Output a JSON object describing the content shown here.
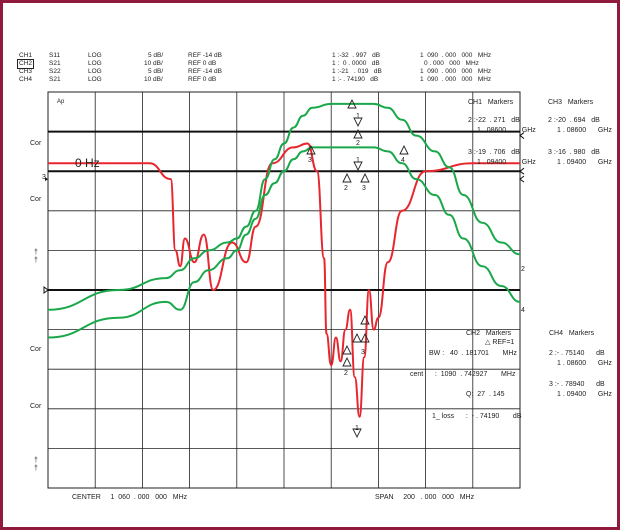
{
  "header": {
    "rows": [
      {
        "ch": "CH1",
        "param": "S11",
        "fmt": "LOG",
        "scale": "5 dB/",
        "ref": "REF -14 dB",
        "mk": "1 :-32  . 997   dB",
        "freq": "1  090  . 000   000   MHz"
      },
      {
        "ch": "CH2",
        "param": "S21",
        "fmt": "LOG",
        "scale": "10 dB/",
        "ref": "REF 0 dB",
        "mk": "1 :  0 . 0000   dB",
        "freq": "0 . 000   000   MHz"
      },
      {
        "ch": "CH3",
        "param": "S22",
        "fmt": "LOG",
        "scale": "5 dB/",
        "ref": "REF -14 dB",
        "mk": "1 :-21   . 019   dB",
        "freq": "1  090  . 000   000   MHz"
      },
      {
        "ch": "CH4",
        "param": "S21",
        "fmt": "LOG",
        "scale": "10 dB/",
        "ref": "REF 0 dB",
        "mk": "1 :- . 74190   dB",
        "freq": "1  090  . 000   000   MHz"
      }
    ]
  },
  "left_labels": {
    "cor": "Cor",
    "ref3": "3",
    "dagger": "†"
  },
  "zero_hz": "0 Hz",
  "ap": "Ap",
  "ch1_markers": {
    "title": "CH1   Markers",
    "m2a": "2 :-22  . 271   dB",
    "m2b": "1 . 08600        GHz",
    "m3a": "3 :-19  . 706   dB",
    "m3b": "1 . 09400        GHz"
  },
  "ch3_markers": {
    "title": "CH3   Markers",
    "m2a": "2 :-20  . 694   dB",
    "m2b": "1 . 08600      GHz",
    "m3a": "3 :-16  . 980   dB",
    "m3b": "1 . 09400      GHz"
  },
  "ch2_markers": {
    "title": "CH2   Markers",
    "ref": "△ REF=1",
    "bw": "BW :   40  . 181701       MHz",
    "cent": "cent      :  1090  . 742927       MHz",
    "q": "Q:  27  . 145",
    "loss": "1_ loss      :  - . 74190       dB"
  },
  "ch4_markers": {
    "title": "CH4   Markers",
    "m2a": "2 :- . 75140      dB",
    "m2b": "1 . 08600      GHz",
    "m3a": "3 :- . 78940      dB",
    "m3b": "1 . 09400      GHz"
  },
  "footer": {
    "center": "CENTER     1  060  . 000   000   MHz",
    "span": "SPAN     200   . 000   000   MHz"
  },
  "trace_end_labels": [
    "2",
    "4"
  ],
  "colors": {
    "frame": "#8f1a3c",
    "red": "#e8262e",
    "green": "#1aa84a",
    "grid": "#222222"
  },
  "chart_data": {
    "type": "line",
    "x_unit": "MHz",
    "xlim": [
      960,
      1160
    ],
    "series": [
      {
        "color": "red",
        "x": [
          960,
          1003,
          1012,
          1014,
          1016,
          1018,
          1022,
          1026,
          1030,
          1038,
          1044,
          1048,
          1055,
          1064,
          1070,
          1074,
          1077,
          1078,
          1080,
          1082,
          1084,
          1086,
          1088,
          1090,
          1092,
          1094,
          1096,
          1098,
          1100,
          1104,
          1110,
          1120,
          1140,
          1160
        ],
        "y_frac": [
          0.18,
          0.18,
          0.22,
          0.4,
          0.44,
          0.37,
          0.43,
          0.36,
          0.5,
          0.38,
          0.43,
          0.34,
          0.18,
          0.14,
          0.13,
          0.2,
          0.42,
          0.61,
          0.69,
          0.62,
          0.68,
          0.6,
          0.55,
          0.72,
          0.82,
          0.67,
          0.5,
          0.6,
          0.57,
          0.43,
          0.3,
          0.2,
          0.18,
          0.18
        ]
      },
      {
        "color": "green",
        "x": [
          960,
          990,
          1010,
          1016,
          1022,
          1028,
          1036,
          1040,
          1044,
          1048,
          1052,
          1056,
          1060,
          1064,
          1068,
          1072,
          1080,
          1098,
          1104,
          1110,
          1116,
          1124,
          1130,
          1136,
          1144,
          1152,
          1160
        ],
        "y_frac": [
          0.55,
          0.5,
          0.47,
          0.45,
          0.42,
          0.4,
          0.38,
          0.37,
          0.34,
          0.3,
          0.22,
          0.17,
          0.13,
          0.09,
          0.06,
          0.04,
          0.03,
          0.03,
          0.04,
          0.07,
          0.11,
          0.15,
          0.19,
          0.26,
          0.33,
          0.38,
          0.41
        ]
      },
      {
        "color": "green",
        "x": [
          960,
          990,
          1010,
          1016,
          1022,
          1028,
          1036,
          1040,
          1044,
          1048,
          1052,
          1056,
          1060,
          1064,
          1068,
          1072,
          1080,
          1098,
          1104,
          1110,
          1116,
          1124,
          1130,
          1136,
          1144,
          1152,
          1160
        ],
        "y_frac": [
          0.62,
          0.57,
          0.53,
          0.55,
          0.48,
          0.45,
          0.42,
          0.4,
          0.36,
          0.32,
          0.26,
          0.23,
          0.2,
          0.17,
          0.15,
          0.14,
          0.14,
          0.14,
          0.15,
          0.18,
          0.22,
          0.26,
          0.31,
          0.37,
          0.44,
          0.49,
          0.53
        ]
      }
    ]
  }
}
